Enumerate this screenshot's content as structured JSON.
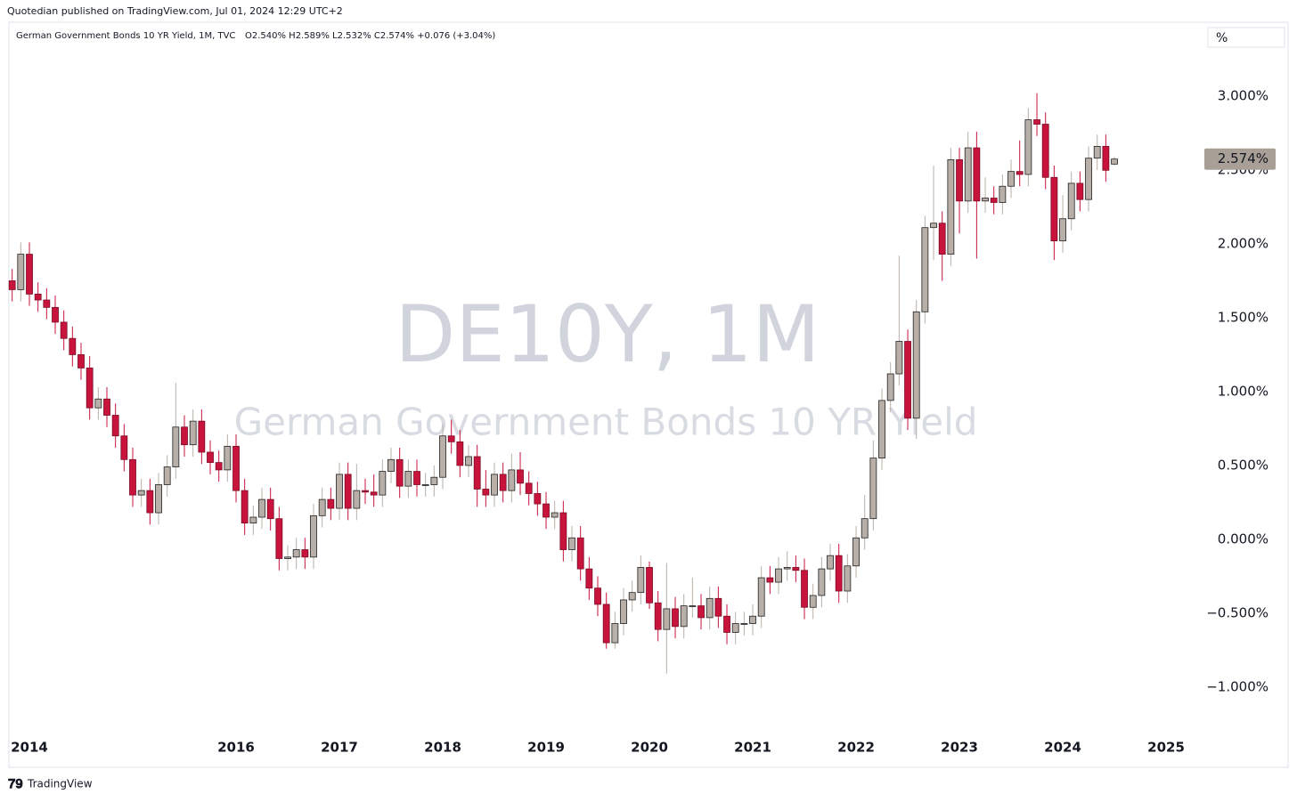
{
  "header": {
    "publisher": "Quotedian published on TradingView.com, Jul 01, 2024 12:29 UTC+2",
    "footer": "TradingView",
    "unit_button": "%"
  },
  "chart_data": {
    "type": "candlestick",
    "title": "German Government Bonds 10 YR Yield, 1M, TVC",
    "ohlc_text": "O2.540%  H2.589%  L2.532%  C2.574%  +0.076 (+3.04%)",
    "watermark": "DE10Y, 1M",
    "watermark_subtitle": "German Government Bonds 10 YR Yield",
    "last_label": "2.574%",
    "up_color": "#b8b0a8",
    "down_color": "#c8133d",
    "categories": [
      null,
      null,
      "2014",
      null,
      null,
      null,
      null,
      null,
      null,
      null,
      null,
      null,
      null,
      null,
      null,
      null,
      null,
      null,
      null,
      null,
      null,
      null,
      null,
      null,
      null,
      null,
      "2016",
      null,
      null,
      null,
      null,
      null,
      null,
      null,
      null,
      null,
      null,
      null,
      "2017",
      null,
      null,
      null,
      null,
      null,
      null,
      null,
      null,
      null,
      null,
      null,
      "2018",
      null,
      null,
      null,
      null,
      null,
      null,
      null,
      null,
      null,
      null,
      null,
      "2019",
      null,
      null,
      null,
      null,
      null,
      null,
      null,
      null,
      null,
      null,
      null,
      "2020",
      null,
      null,
      null,
      null,
      null,
      null,
      null,
      null,
      null,
      null,
      null,
      "2021",
      null,
      null,
      null,
      null,
      null,
      null,
      null,
      null,
      null,
      null,
      null,
      "2022",
      null,
      null,
      null,
      null,
      null,
      null,
      null,
      null,
      null,
      null,
      null,
      "2023",
      null,
      null,
      null,
      null,
      null,
      null,
      null,
      null,
      null,
      null,
      null,
      "2024",
      null,
      null,
      null,
      null,
      null,
      null,
      null,
      null,
      null,
      null,
      null,
      "2025"
    ],
    "open": [
      1.75,
      1.69,
      1.93,
      1.66,
      1.62,
      1.57,
      1.47,
      1.36,
      1.25,
      1.16,
      0.89,
      0.95,
      0.84,
      0.7,
      0.54,
      0.3,
      0.33,
      0.18,
      0.37,
      0.49,
      0.76,
      0.64,
      0.8,
      0.59,
      0.52,
      0.47,
      0.63,
      0.33,
      0.11,
      0.15,
      0.27,
      0.14,
      -0.13,
      -0.12,
      -0.07,
      -0.12,
      0.16,
      0.27,
      0.21,
      0.44,
      0.21,
      0.33,
      0.32,
      0.3,
      0.46,
      0.54,
      0.36,
      0.46,
      0.37,
      0.37,
      0.42,
      0.7,
      0.66,
      0.5,
      0.56,
      0.34,
      0.3,
      0.44,
      0.33,
      0.47,
      0.38,
      0.31,
      0.24,
      0.15,
      0.18,
      -0.07,
      0.01,
      -0.2,
      -0.33,
      -0.44,
      -0.7,
      -0.57,
      -0.41,
      -0.36,
      -0.19,
      -0.43,
      -0.61,
      -0.47,
      -0.59,
      -0.45,
      -0.45,
      -0.53,
      -0.4,
      -0.52,
      -0.63,
      -0.57,
      -0.57,
      -0.52,
      -0.26,
      -0.29,
      -0.2,
      -0.19,
      -0.21,
      -0.46,
      -0.38,
      -0.2,
      -0.11,
      -0.35,
      -0.18,
      0.01,
      0.14,
      0.55,
      0.94,
      1.12,
      1.34,
      0.82,
      1.54,
      2.11,
      2.14,
      1.93,
      2.57,
      2.29,
      2.65,
      2.29,
      2.31,
      2.28,
      2.39,
      2.49,
      2.47,
      2.84,
      2.81,
      2.45,
      2.02,
      2.17,
      2.41,
      2.3,
      2.58,
      2.66,
      2.54,
      null,
      null,
      null,
      null,
      null,
      null
    ],
    "high": [
      1.83,
      2.01,
      2.01,
      1.74,
      1.7,
      1.65,
      1.55,
      1.44,
      1.33,
      1.24,
      1.03,
      1.03,
      0.92,
      0.78,
      0.62,
      0.41,
      0.41,
      0.45,
      0.57,
      1.06,
      0.84,
      0.88,
      0.88,
      0.67,
      0.6,
      0.71,
      0.71,
      0.41,
      0.23,
      0.35,
      0.35,
      0.22,
      -0.04,
      0.01,
      0.01,
      0.24,
      0.35,
      0.35,
      0.52,
      0.52,
      0.51,
      0.41,
      0.44,
      0.54,
      0.62,
      0.62,
      0.54,
      0.54,
      0.45,
      0.5,
      0.78,
      0.81,
      0.74,
      0.64,
      0.64,
      0.47,
      0.52,
      0.52,
      0.58,
      0.59,
      0.46,
      0.39,
      0.32,
      0.26,
      0.26,
      0.09,
      0.09,
      -0.12,
      -0.25,
      -0.36,
      -0.49,
      -0.33,
      -0.28,
      -0.11,
      -0.15,
      -0.35,
      -0.16,
      -0.39,
      -0.37,
      -0.26,
      -0.37,
      -0.32,
      -0.32,
      -0.44,
      -0.49,
      -0.49,
      -0.44,
      -0.18,
      -0.18,
      -0.12,
      -0.08,
      -0.11,
      -0.13,
      -0.3,
      -0.12,
      -0.03,
      -0.03,
      -0.1,
      0.09,
      0.3,
      0.67,
      1.02,
      1.2,
      1.92,
      1.42,
      1.62,
      2.19,
      2.53,
      2.22,
      2.65,
      2.65,
      2.76,
      2.76,
      2.45,
      2.39,
      2.47,
      2.57,
      2.7,
      2.92,
      3.02,
      2.89,
      2.53,
      2.33,
      2.49,
      2.49,
      2.66,
      2.74,
      2.74,
      2.589,
      null,
      null,
      null,
      null,
      null,
      null
    ],
    "low": [
      1.61,
      1.61,
      1.58,
      1.54,
      1.49,
      1.39,
      1.28,
      1.17,
      1.08,
      0.81,
      0.81,
      0.76,
      0.62,
      0.46,
      0.22,
      0.22,
      0.1,
      0.1,
      0.29,
      0.41,
      0.56,
      0.56,
      0.51,
      0.44,
      0.39,
      0.39,
      0.25,
      0.03,
      0.03,
      0.07,
      0.06,
      -0.21,
      -0.21,
      -0.2,
      -0.2,
      -0.2,
      0.08,
      0.13,
      0.13,
      0.13,
      0.13,
      0.24,
      0.22,
      0.22,
      0.38,
      0.28,
      0.28,
      0.29,
      0.29,
      0.29,
      0.34,
      0.58,
      0.42,
      0.42,
      0.22,
      0.22,
      0.22,
      0.25,
      0.25,
      0.3,
      0.23,
      0.16,
      0.07,
      0.07,
      -0.15,
      -0.15,
      -0.28,
      -0.41,
      -0.52,
      -0.74,
      -0.74,
      -0.65,
      -0.49,
      -0.44,
      -0.47,
      -0.69,
      -0.91,
      -0.67,
      -0.67,
      -0.53,
      -0.61,
      -0.61,
      -0.6,
      -0.71,
      -0.71,
      -0.65,
      -0.65,
      -0.6,
      -0.37,
      -0.37,
      -0.28,
      -0.29,
      -0.54,
      -0.54,
      -0.46,
      -0.28,
      -0.43,
      -0.43,
      -0.26,
      -0.07,
      0.06,
      0.47,
      0.86,
      1.04,
      0.74,
      0.68,
      1.46,
      1.89,
      1.75,
      1.85,
      2.07,
      2.21,
      1.9,
      2.21,
      2.2,
      2.2,
      2.31,
      2.39,
      2.39,
      2.73,
      2.37,
      1.89,
      1.94,
      2.09,
      2.22,
      2.22,
      2.5,
      2.42,
      2.532,
      null,
      null,
      null,
      null,
      null,
      null
    ],
    "close": [
      1.69,
      1.93,
      1.66,
      1.62,
      1.57,
      1.47,
      1.36,
      1.25,
      1.16,
      0.89,
      0.95,
      0.84,
      0.7,
      0.54,
      0.3,
      0.33,
      0.18,
      0.37,
      0.49,
      0.76,
      0.64,
      0.8,
      0.59,
      0.52,
      0.47,
      0.63,
      0.33,
      0.11,
      0.15,
      0.27,
      0.14,
      -0.13,
      -0.12,
      -0.07,
      -0.12,
      0.16,
      0.27,
      0.21,
      0.44,
      0.21,
      0.33,
      0.32,
      0.3,
      0.46,
      0.54,
      0.36,
      0.46,
      0.37,
      0.37,
      0.42,
      0.7,
      0.66,
      0.5,
      0.56,
      0.34,
      0.3,
      0.44,
      0.33,
      0.47,
      0.38,
      0.31,
      0.24,
      0.15,
      0.18,
      -0.07,
      0.01,
      -0.2,
      -0.33,
      -0.44,
      -0.7,
      -0.57,
      -0.41,
      -0.36,
      -0.19,
      -0.43,
      -0.61,
      -0.47,
      -0.59,
      -0.45,
      -0.45,
      -0.53,
      -0.4,
      -0.52,
      -0.63,
      -0.57,
      -0.57,
      -0.52,
      -0.26,
      -0.29,
      -0.2,
      -0.19,
      -0.21,
      -0.46,
      -0.38,
      -0.2,
      -0.11,
      -0.35,
      -0.18,
      0.01,
      0.14,
      0.55,
      0.94,
      1.12,
      1.34,
      0.82,
      1.54,
      2.11,
      2.14,
      1.93,
      2.57,
      2.29,
      2.65,
      2.29,
      2.31,
      2.28,
      2.39,
      2.49,
      2.47,
      2.84,
      2.81,
      2.45,
      2.02,
      2.17,
      2.41,
      2.3,
      2.58,
      2.66,
      2.498,
      2.574,
      null,
      null,
      null,
      null,
      null,
      null
    ],
    "ylim": [
      -1.32,
      3.5
    ],
    "yticks": [
      {
        "value": -1,
        "label": "−1.000%"
      },
      {
        "value": -0.5,
        "label": "−0.500%"
      },
      {
        "value": 0,
        "label": "0.000%"
      },
      {
        "value": 0.5,
        "label": "0.500%"
      },
      {
        "value": 1,
        "label": "1.000%"
      },
      {
        "value": 1.5,
        "label": "1.500%"
      },
      {
        "value": 2,
        "label": "2.000%"
      },
      {
        "value": 2.5,
        "label": "2.500%"
      },
      {
        "value": 3,
        "label": "3.000%"
      }
    ],
    "grid": false
  }
}
